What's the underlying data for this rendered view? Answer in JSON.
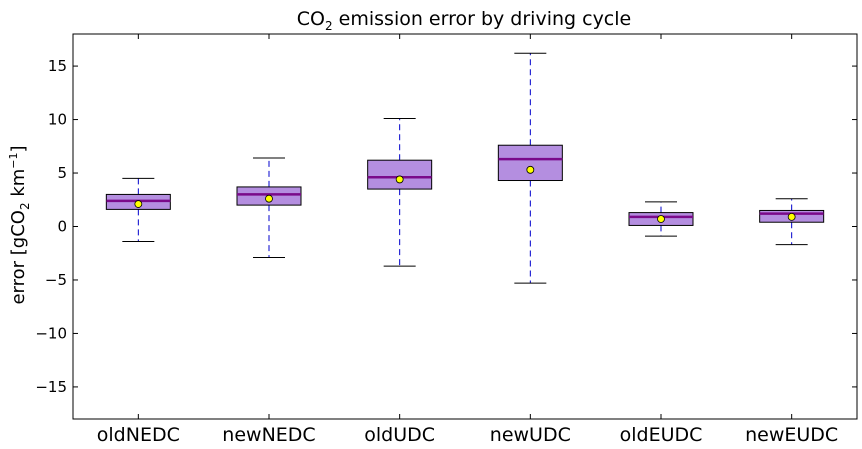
{
  "chart_data": {
    "type": "box",
    "title_main": "CO",
    "title_sub": "2",
    "title_rest": " emission error by driving cycle",
    "ylabel_main": "error [gCO",
    "ylabel_sub": "2",
    "ylabel_unit": " km",
    "ylabel_sup": "−1",
    "ylabel_close": "]",
    "ylim": [
      -18,
      18
    ],
    "yticks": [
      -15,
      -10,
      -5,
      0,
      5,
      10,
      15
    ],
    "grid": false,
    "colors": {
      "box_fill": "#b48ee0",
      "median": "#7a0a8a",
      "whisker": "#0000cc",
      "mean_marker": "#ffff00"
    },
    "categories": [
      "oldNEDC",
      "newNEDC",
      "oldUDC",
      "newUDC",
      "oldEUDC",
      "newEUDC"
    ],
    "boxes": [
      {
        "whisker_low": -1.4,
        "q1": 1.6,
        "median": 2.4,
        "q3": 3.0,
        "whisker_high": 4.5,
        "mean": 2.1
      },
      {
        "whisker_low": -2.9,
        "q1": 2.0,
        "median": 3.0,
        "q3": 3.7,
        "whisker_high": 6.4,
        "mean": 2.6
      },
      {
        "whisker_low": -3.7,
        "q1": 3.5,
        "median": 4.6,
        "q3": 6.2,
        "whisker_high": 10.1,
        "mean": 4.4
      },
      {
        "whisker_low": -5.3,
        "q1": 4.3,
        "median": 6.3,
        "q3": 7.6,
        "whisker_high": 16.2,
        "mean": 5.3
      },
      {
        "whisker_low": -0.9,
        "q1": 0.1,
        "median": 0.9,
        "q3": 1.3,
        "whisker_high": 2.3,
        "mean": 0.7
      },
      {
        "whisker_low": -1.7,
        "q1": 0.4,
        "median": 1.2,
        "q3": 1.5,
        "whisker_high": 2.6,
        "mean": 0.9
      }
    ]
  }
}
